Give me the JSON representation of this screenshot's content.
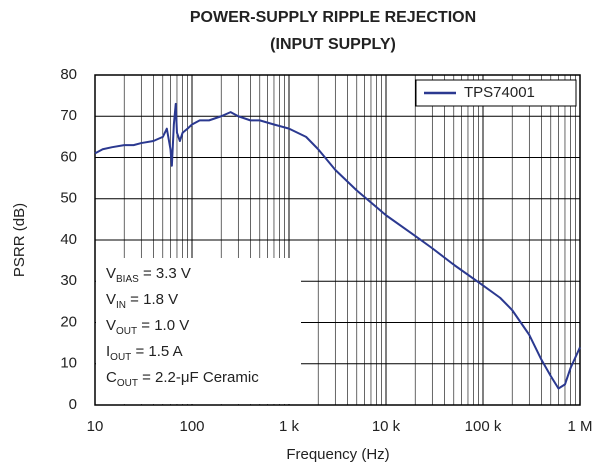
{
  "chart_data": {
    "type": "line",
    "title": [
      "POWER-SUPPLY RIPPLE REJECTION",
      "(INPUT SUPPLY)"
    ],
    "x_label": "Frequency (Hz)",
    "y_label": "PSRR (dB)",
    "xscale": "log",
    "xlim": [
      10,
      1000000
    ],
    "ylim": [
      0,
      80
    ],
    "xticks": [
      10,
      100,
      {
        "value": 1000,
        "label": "1 k"
      },
      {
        "value": 10000,
        "label": "10 k"
      },
      {
        "value": 100000,
        "label": "100 k"
      },
      {
        "value": 1000000,
        "label": "1 M"
      }
    ],
    "xminorticks": [
      20,
      30,
      40,
      50,
      60,
      70,
      80,
      90,
      200,
      300,
      400,
      500,
      600,
      700,
      800,
      900,
      2000,
      3000,
      4000,
      5000,
      6000,
      7000,
      8000,
      9000,
      20000,
      30000,
      40000,
      50000,
      60000,
      70000,
      80000,
      90000,
      200000,
      300000,
      400000,
      500000,
      600000,
      700000,
      800000,
      900000
    ],
    "yticks": [
      0,
      10,
      20,
      30,
      40,
      50,
      60,
      70,
      80
    ],
    "grid": true,
    "legend": "upper right",
    "series": [
      {
        "name": "TPS74001",
        "color": "#2b3990",
        "x": [
          10,
          12,
          15,
          20,
          25,
          30,
          40,
          50,
          55,
          60,
          62,
          65,
          68,
          70,
          75,
          80,
          90,
          100,
          120,
          150,
          200,
          250,
          300,
          400,
          500,
          700,
          1000,
          1500,
          2000,
          3000,
          5000,
          10000,
          20000,
          30000,
          50000,
          100000,
          150000,
          200000,
          300000,
          400000,
          500000,
          600000,
          700000,
          800000,
          1000000
        ],
        "values": [
          61,
          62,
          62.5,
          63,
          63,
          63.5,
          64,
          65,
          67,
          62,
          58,
          68,
          73,
          66,
          64,
          66,
          67,
          68,
          69,
          69,
          70,
          71,
          70,
          69,
          69,
          68,
          67,
          65,
          62,
          57,
          52,
          46,
          41,
          38,
          34,
          29,
          26,
          23,
          17,
          11,
          7,
          4,
          5,
          9,
          14
        ]
      }
    ],
    "annotation": [
      {
        "main": "V",
        "sub": "BIAS",
        "rest": " = 3.3 V"
      },
      {
        "main": "V",
        "sub": "IN",
        "rest": " = 1.8 V"
      },
      {
        "main": "V",
        "sub": "OUT",
        "rest": " = 1.0 V"
      },
      {
        "main": "I",
        "sub": "OUT",
        "rest": " = 1.5 A"
      },
      {
        "main": "C",
        "sub": "OUT",
        "rest": " = 2.2-μF Ceramic"
      }
    ]
  }
}
